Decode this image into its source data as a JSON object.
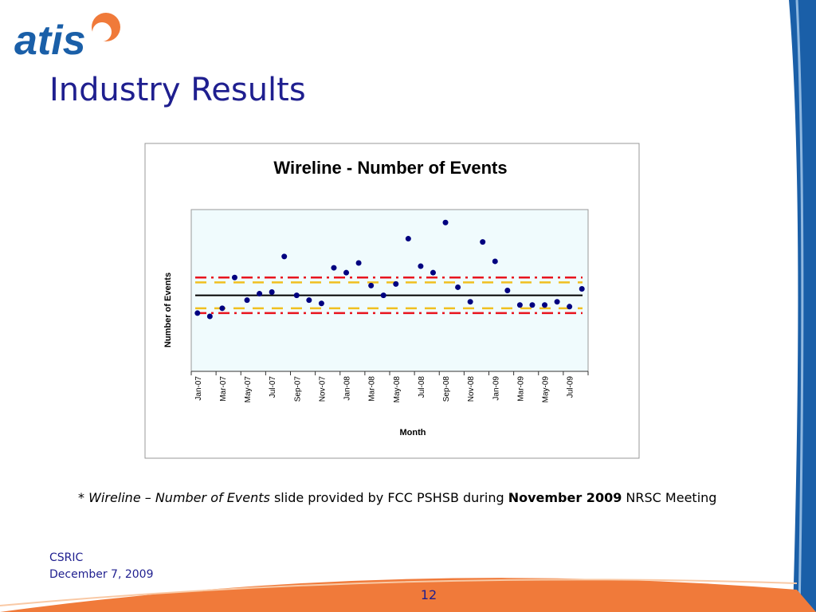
{
  "logo": "atis",
  "header": {
    "title": "Industry Results"
  },
  "chart_data": {
    "type": "scatter",
    "title": "Wireline - Number of Events",
    "xlabel": "Month",
    "ylabel": "Number of Events",
    "categories": [
      "Jan-07",
      null,
      "Mar-07",
      null,
      "May-07",
      null,
      "Jul-07",
      null,
      "Sep-07",
      null,
      "Nov-07",
      null,
      "Jan-08",
      null,
      "Mar-08",
      null,
      "May-08",
      null,
      "Jul-08",
      null,
      "Sep-08",
      null,
      "Nov-08",
      null,
      "Jan-09",
      null,
      "Mar-09",
      null,
      "May-09",
      null,
      "Jul-09",
      null
    ],
    "values": [
      36,
      34,
      39,
      58,
      44,
      48,
      49,
      71,
      47,
      44,
      42,
      64,
      61,
      67,
      53,
      47,
      54,
      82,
      65,
      61,
      92,
      52,
      43,
      80,
      68,
      50,
      41,
      41,
      41,
      43,
      40,
      51
    ],
    "color": "#000080",
    "ylim": [
      0,
      100
    ],
    "reference_lines": [
      {
        "value": 47,
        "color": "#000000",
        "dash": "solid"
      },
      {
        "value": 58,
        "color": "#e8141e",
        "dash": "dash-dot"
      },
      {
        "value": 36,
        "color": "#e8141e",
        "dash": "dash-dot"
      },
      {
        "value": 55,
        "color": "#f0c020",
        "dash": "dash"
      },
      {
        "value": 39,
        "color": "#f0c020",
        "dash": "dash"
      }
    ],
    "background": "#f0fbfd"
  },
  "footnote": [
    {
      "text": "* ",
      "style": "normal"
    },
    {
      "text": "Wireline – Number of Events",
      "style": "italic"
    },
    {
      "text": " slide provided by FCC PSHSB during ",
      "style": "normal"
    },
    {
      "text": "November 2009",
      "style": "bold"
    },
    {
      "text": " NRSC Meeting",
      "style": "normal"
    }
  ],
  "footer": {
    "org": "CSRIC",
    "date": "December 7, 2009",
    "page": "12"
  }
}
